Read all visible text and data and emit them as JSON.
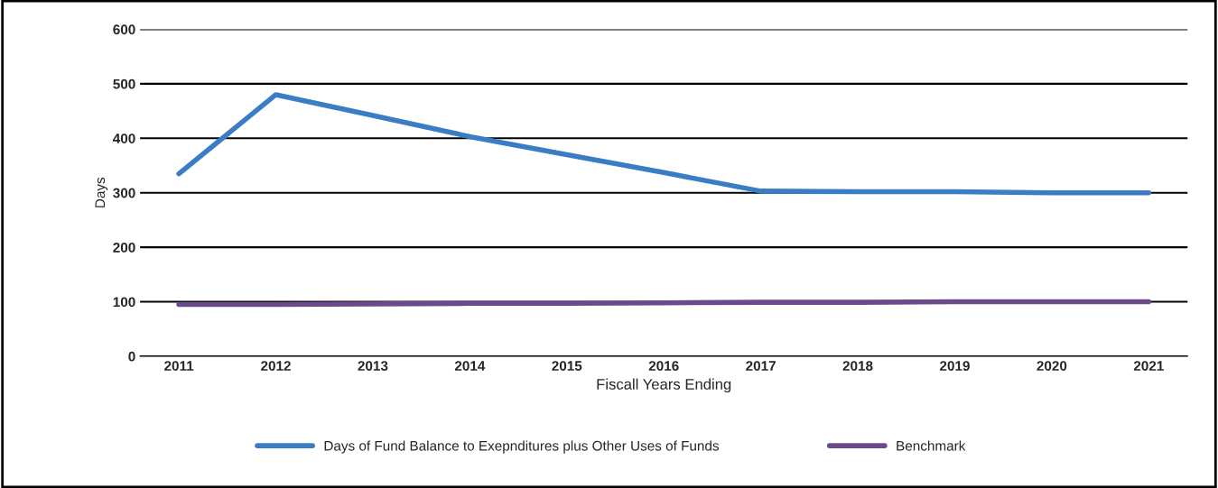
{
  "chart_data": {
    "type": "line",
    "xlabel": "Fiscall Years Ending",
    "ylabel": "Days",
    "categories": [
      "2011",
      "2012",
      "2013",
      "2014",
      "2015",
      "2016",
      "2017",
      "2018",
      "2019",
      "2020",
      "2021"
    ],
    "series": [
      {
        "name": "Days of Fund Balance to Exepnditures plus Other Uses of Funds",
        "color": "#3a7dc4",
        "values": [
          335,
          480,
          442,
          403,
          370,
          337,
          303,
          302,
          302,
          300,
          300
        ]
      },
      {
        "name": "Benchmark",
        "color": "#6b4a8c",
        "values": [
          95,
          95,
          96,
          97,
          97,
          98,
          99,
          99,
          100,
          100,
          100
        ]
      }
    ],
    "ylim": [
      0,
      600
    ],
    "yticks": [
      0,
      100,
      200,
      300,
      400,
      500,
      600
    ],
    "grid": "y",
    "legend": "bottom",
    "marker": "none",
    "line_style": "solid"
  }
}
